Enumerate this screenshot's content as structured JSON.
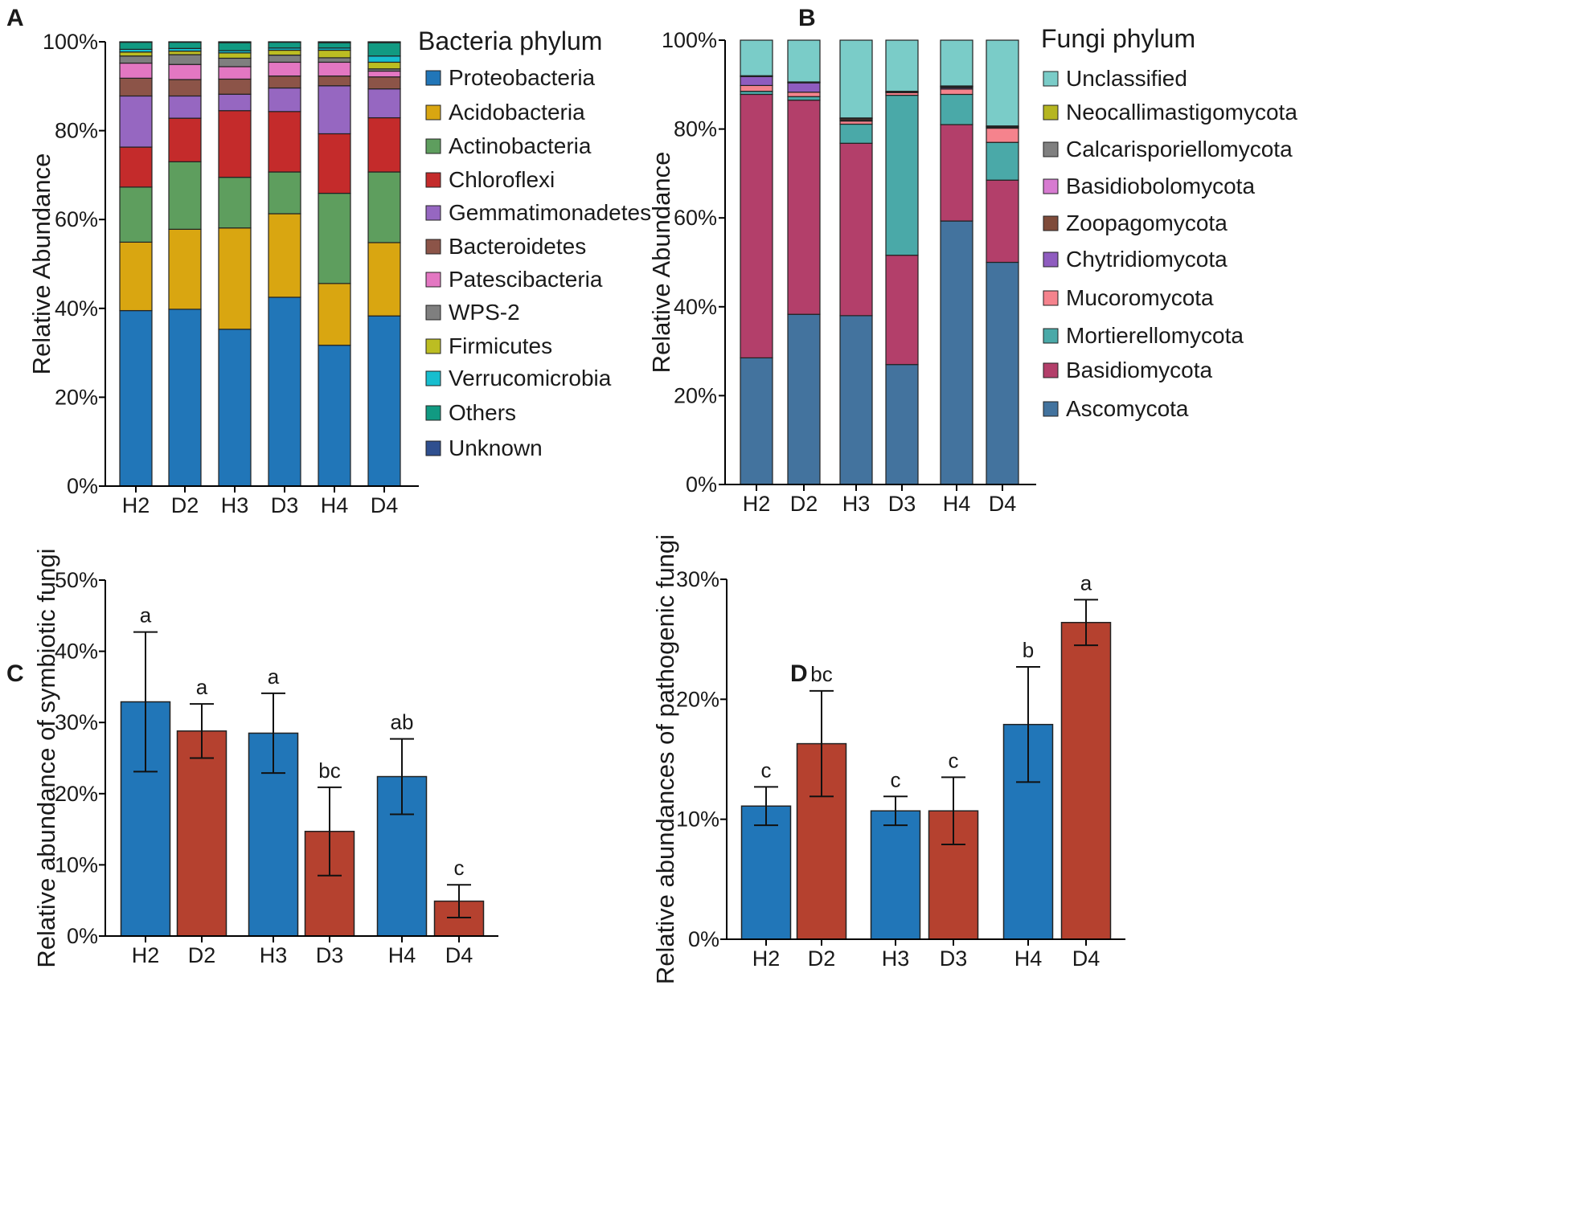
{
  "chart_data": [
    {
      "panel": "A",
      "type": "bar",
      "stacked": true,
      "ylabel": "Relative Abundance",
      "ylim": [
        0,
        100
      ],
      "yticks": [
        "0%",
        "20%",
        "40%",
        "60%",
        "80%",
        "100%"
      ],
      "categories": [
        "H2",
        "D2",
        "H3",
        "D3",
        "H4",
        "D4"
      ],
      "legend_title": "Bacteria phylum",
      "series": [
        {
          "name": "Proteobacteria",
          "color": "#2176b8",
          "values": [
            39.5,
            39.8,
            35.3,
            42.5,
            31.7,
            38.3
          ]
        },
        {
          "name": "Acidobacteria",
          "color": "#d9a611",
          "values": [
            15.4,
            18.0,
            22.8,
            18.8,
            13.9,
            16.5
          ]
        },
        {
          "name": "Actinobacteria",
          "color": "#5e9e5e",
          "values": [
            12.4,
            15.2,
            11.4,
            9.4,
            20.3,
            15.9
          ]
        },
        {
          "name": "Chloroflexi",
          "color": "#c42b2b",
          "values": [
            9.0,
            9.8,
            15.0,
            13.6,
            13.4,
            12.2
          ]
        },
        {
          "name": "Gemmatimonadetes",
          "color": "#9667c1",
          "values": [
            11.5,
            5.0,
            3.7,
            5.3,
            10.8,
            6.5
          ]
        },
        {
          "name": "Bacteroidetes",
          "color": "#8c5448",
          "values": [
            4.0,
            3.7,
            3.4,
            2.7,
            2.2,
            2.7
          ]
        },
        {
          "name": "Patescibacteria",
          "color": "#e377c2",
          "values": [
            3.4,
            3.4,
            2.8,
            3.1,
            3.1,
            1.3
          ]
        },
        {
          "name": "WPS-2",
          "color": "#7f7f7f",
          "values": [
            1.6,
            2.2,
            1.9,
            1.6,
            1.0,
            0.5
          ]
        },
        {
          "name": "Firmicutes",
          "color": "#bcbd22",
          "values": [
            0.9,
            0.8,
            1.2,
            1.1,
            1.7,
            1.5
          ]
        },
        {
          "name": "Verrucomicrobia",
          "color": "#17becf",
          "values": [
            0.6,
            0.6,
            0.5,
            0.5,
            0.5,
            1.4
          ]
        },
        {
          "name": "Others",
          "color": "#119a82",
          "values": [
            1.6,
            1.4,
            1.8,
            1.3,
            1.2,
            3.0
          ]
        },
        {
          "name": "Unknown",
          "color": "#2f4f8f",
          "values": [
            0.1,
            0.1,
            0.2,
            0.1,
            0.2,
            0.2
          ]
        }
      ]
    },
    {
      "panel": "B",
      "type": "bar",
      "stacked": true,
      "ylabel": "Relative Abundance",
      "ylim": [
        0,
        100
      ],
      "yticks": [
        "0%",
        "20%",
        "40%",
        "60%",
        "80%",
        "100%"
      ],
      "categories": [
        "H2",
        "D2",
        "H3",
        "D3",
        "H4",
        "D4"
      ],
      "legend_title": "Fungi phylum",
      "series": [
        {
          "name": "Ascomycota",
          "color": "#43739e",
          "values": [
            28.5,
            38.3,
            38.0,
            27.0,
            59.3,
            50.0
          ]
        },
        {
          "name": "Basidiomycota",
          "color": "#b33f6a",
          "values": [
            59.3,
            48.2,
            38.8,
            24.6,
            21.7,
            18.5
          ]
        },
        {
          "name": "Mortierellomycota",
          "color": "#4aa9a8",
          "values": [
            0.7,
            0.8,
            4.3,
            36.0,
            6.8,
            8.5
          ]
        },
        {
          "name": "Mucoromycota",
          "color": "#f5838d",
          "values": [
            1.3,
            1.0,
            0.7,
            0.6,
            1.2,
            3.2
          ]
        },
        {
          "name": "Chytridiomycota",
          "color": "#8f5cbf",
          "values": [
            2.0,
            2.1,
            0.2,
            0.1,
            0.3,
            0.1
          ]
        },
        {
          "name": "Zoopagomycota",
          "color": "#7f4b3a",
          "values": [
            0.1,
            0.1,
            0.3,
            0.1,
            0.2,
            0.2
          ]
        },
        {
          "name": "Basidiobolomycota",
          "color": "#d77bd1",
          "values": [
            0.0,
            0.0,
            0.1,
            0.0,
            0.1,
            0.1
          ]
        },
        {
          "name": "Calcarisporiellomycota",
          "color": "#808080",
          "values": [
            0.1,
            0.1,
            0.1,
            0.1,
            0.1,
            0.1
          ]
        },
        {
          "name": "Neocallimastigomycota",
          "color": "#b5b520",
          "values": [
            0.0,
            0.0,
            0.0,
            0.0,
            0.0,
            0.0
          ]
        },
        {
          "name": "Unclassified",
          "color": "#7accc8",
          "values": [
            8.0,
            9.4,
            17.5,
            11.5,
            10.3,
            19.3
          ]
        }
      ]
    },
    {
      "panel": "C",
      "type": "bar",
      "ylabel": "Relative abundance of symbiotic fungi",
      "ylim": [
        0,
        50
      ],
      "yticks": [
        "0%",
        "10%",
        "20%",
        "30%",
        "40%",
        "50%"
      ],
      "categories": [
        "H2",
        "D2",
        "H3",
        "D3",
        "H4",
        "D4"
      ],
      "values": [
        32.9,
        28.8,
        28.5,
        14.7,
        22.4,
        4.9
      ],
      "errors": [
        9.8,
        3.8,
        5.6,
        6.2,
        5.3,
        2.3
      ],
      "significance": [
        "a",
        "a",
        "a",
        "bc",
        "ab",
        "c"
      ],
      "colors": [
        "#2176b8",
        "#b5412f",
        "#2176b8",
        "#b5412f",
        "#2176b8",
        "#b5412f"
      ]
    },
    {
      "panel": "D",
      "type": "bar",
      "ylabel": "Relative abundances of pathogenic fungi",
      "ylim": [
        0,
        30
      ],
      "yticks": [
        "0%",
        "10%",
        "20%",
        "30%"
      ],
      "categories": [
        "H2",
        "D2",
        "H3",
        "D3",
        "H4",
        "D4"
      ],
      "values": [
        11.1,
        16.3,
        10.7,
        10.7,
        17.9,
        26.4
      ],
      "errors": [
        1.6,
        4.4,
        1.2,
        2.8,
        4.8,
        1.9
      ],
      "significance": [
        "c",
        "bc",
        "c",
        "c",
        "b",
        "a"
      ],
      "colors": [
        "#2176b8",
        "#b5412f",
        "#2176b8",
        "#b5412f",
        "#2176b8",
        "#b5412f"
      ]
    }
  ]
}
